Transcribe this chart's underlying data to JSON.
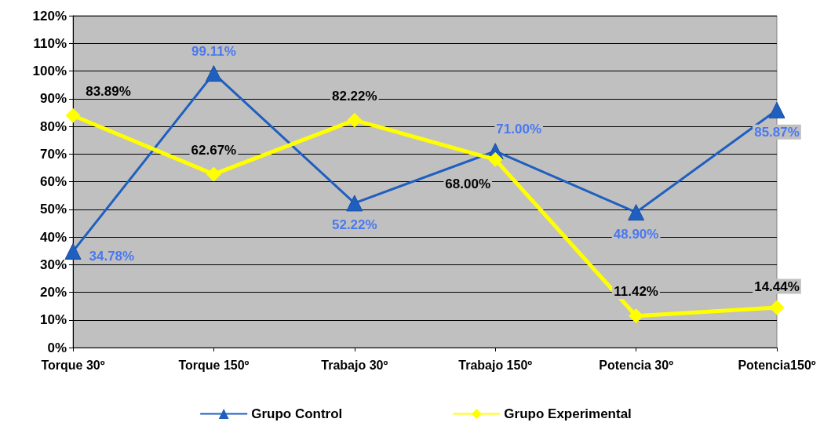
{
  "chart_data": {
    "type": "line",
    "categories": [
      "Torque 30º",
      "Torque 150º",
      "Trabajo 30º",
      "Trabajo 150º",
      "Potencia 30º",
      "Potencia150º"
    ],
    "series": [
      {
        "name": "Grupo Control",
        "color": "#1f5fbf",
        "marker": "triangle",
        "values": [
          34.78,
          99.11,
          52.22,
          71.0,
          48.9,
          85.87
        ],
        "value_labels": [
          "34.78%",
          "99.11%",
          "52.22%",
          "71.00%",
          "48.90%",
          "85.87%"
        ]
      },
      {
        "name": "Grupo Experimental",
        "color": "#ffff00",
        "marker": "diamond",
        "values": [
          83.89,
          62.67,
          82.22,
          68.0,
          11.42,
          14.44
        ],
        "value_labels": [
          "83.89%",
          "62.67%",
          "82.22%",
          "68.00%",
          "11.42%",
          "14.44%"
        ]
      }
    ],
    "ylim": [
      0,
      120
    ],
    "yticks": [
      {
        "value": 0,
        "label": "0%"
      },
      {
        "value": 10,
        "label": "10%"
      },
      {
        "value": 20,
        "label": "20%"
      },
      {
        "value": 30,
        "label": "30%"
      },
      {
        "value": 40,
        "label": "40%"
      },
      {
        "value": 50,
        "label": "50%"
      },
      {
        "value": 60,
        "label": "60%"
      },
      {
        "value": 70,
        "label": "70%"
      },
      {
        "value": 80,
        "label": "80%"
      },
      {
        "value": 90,
        "label": "90%"
      },
      {
        "value": 100,
        "label": "100%"
      },
      {
        "value": 110,
        "label": "110%"
      },
      {
        "value": 120,
        "label": "120%"
      }
    ],
    "grid": "y",
    "legend": "bottom",
    "line_style": "solid"
  }
}
